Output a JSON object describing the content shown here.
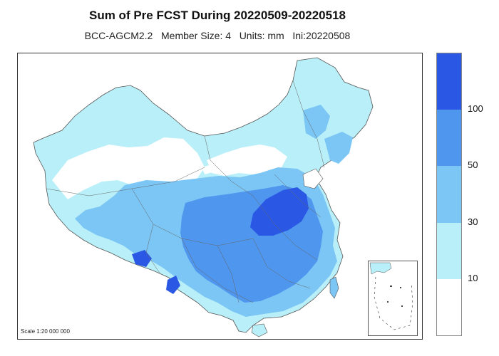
{
  "title": "Sum of Pre FCST During 20220509-20220518",
  "subtitle": "BCC-AGCM2.2   Member Size: 4   Units: mm   Ini:20220508",
  "scale_note": "Scale 1:20 000 000",
  "legend": {
    "bins": [
      {
        "label": "",
        "color": "#ffffff"
      },
      {
        "label": "10",
        "color": "#b9eff8"
      },
      {
        "label": "30",
        "color": "#7cc6f6"
      },
      {
        "label": "50",
        "color": "#4f96ee"
      },
      {
        "label": "100",
        "color": "#2a58e4"
      }
    ],
    "tick_labels": [
      "10",
      "30",
      "50",
      "100"
    ]
  },
  "colors": {
    "bin_0_10": "#ffffff",
    "bin_10_30": "#b9eff8",
    "bin_30_50": "#7cc6f6",
    "bin_50_100": "#4f96ee",
    "bin_100_plus": "#2a58e4",
    "border": "#444444"
  }
}
